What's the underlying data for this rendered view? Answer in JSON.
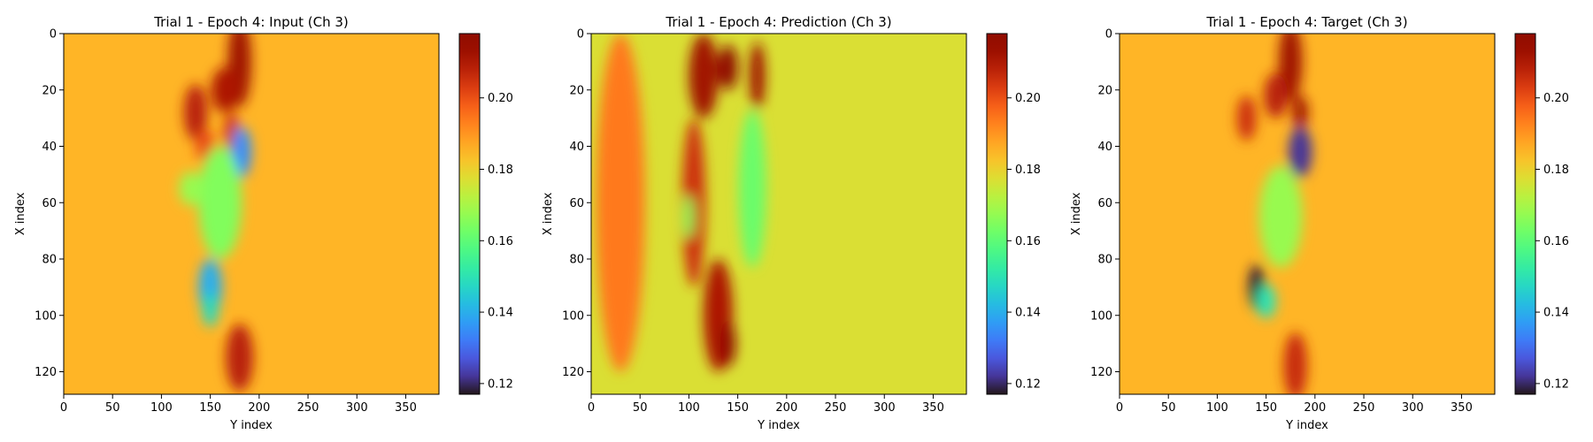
{
  "chart_data": [
    {
      "type": "heatmap",
      "title": "Trial 1 - Epoch 4: Input (Ch 3)",
      "xlabel": "Y index",
      "ylabel": "X index",
      "xlim": [
        0,
        384
      ],
      "ylim": [
        128,
        0
      ],
      "xticks": [
        0,
        50,
        100,
        150,
        200,
        250,
        300,
        350
      ],
      "yticks": [
        0,
        20,
        40,
        60,
        80,
        100,
        120
      ],
      "colorbar": {
        "range": [
          0.117,
          0.218
        ],
        "ticks": [
          "0.12",
          "0.14",
          "0.16",
          "0.18",
          "0.20"
        ],
        "colormap": "turbo"
      },
      "background_value": 0.185,
      "features": [
        {
          "x": 180,
          "y": 10,
          "rx": 12,
          "ry": 16,
          "value": 0.212
        },
        {
          "x": 165,
          "y": 20,
          "rx": 14,
          "ry": 8,
          "value": 0.21
        },
        {
          "x": 135,
          "y": 28,
          "rx": 12,
          "ry": 10,
          "value": 0.208
        },
        {
          "x": 172,
          "y": 35,
          "rx": 8,
          "ry": 7,
          "value": 0.205
        },
        {
          "x": 145,
          "y": 40,
          "rx": 10,
          "ry": 6,
          "value": 0.2
        },
        {
          "x": 182,
          "y": 42,
          "rx": 10,
          "ry": 9,
          "value": 0.135
        },
        {
          "x": 160,
          "y": 60,
          "rx": 22,
          "ry": 20,
          "value": 0.165
        },
        {
          "x": 130,
          "y": 55,
          "rx": 12,
          "ry": 6,
          "value": 0.168
        },
        {
          "x": 150,
          "y": 90,
          "rx": 12,
          "ry": 10,
          "value": 0.14
        },
        {
          "x": 150,
          "y": 98,
          "rx": 8,
          "ry": 6,
          "value": 0.148
        },
        {
          "x": 180,
          "y": 115,
          "rx": 14,
          "ry": 12,
          "value": 0.208
        }
      ]
    },
    {
      "type": "heatmap",
      "title": "Trial 1 - Epoch 4: Prediction (Ch 3)",
      "xlabel": "Y index",
      "ylabel": "X index",
      "xlim": [
        0,
        384
      ],
      "ylim": [
        128,
        0
      ],
      "xticks": [
        0,
        50,
        100,
        150,
        200,
        250,
        300,
        350
      ],
      "yticks": [
        0,
        20,
        40,
        60,
        80,
        100,
        120
      ],
      "colorbar": {
        "range": [
          0.117,
          0.218
        ],
        "ticks": [
          "0.12",
          "0.14",
          "0.16",
          "0.18",
          "0.20"
        ],
        "colormap": "turbo"
      },
      "background_value": 0.177,
      "features": [
        {
          "x": 30,
          "y": 60,
          "rx": 25,
          "ry": 60,
          "value": 0.194
        },
        {
          "x": 115,
          "y": 15,
          "rx": 15,
          "ry": 15,
          "value": 0.212
        },
        {
          "x": 140,
          "y": 12,
          "rx": 10,
          "ry": 8,
          "value": 0.218
        },
        {
          "x": 170,
          "y": 15,
          "rx": 8,
          "ry": 12,
          "value": 0.212
        },
        {
          "x": 105,
          "y": 60,
          "rx": 12,
          "ry": 30,
          "value": 0.205
        },
        {
          "x": 130,
          "y": 100,
          "rx": 15,
          "ry": 20,
          "value": 0.21
        },
        {
          "x": 140,
          "y": 110,
          "rx": 8,
          "ry": 8,
          "value": 0.216
        },
        {
          "x": 165,
          "y": 55,
          "rx": 14,
          "ry": 28,
          "value": 0.162
        },
        {
          "x": 100,
          "y": 65,
          "rx": 5,
          "ry": 8,
          "value": 0.165
        }
      ]
    },
    {
      "type": "heatmap",
      "title": "Trial 1 - Epoch 4: Target (Ch 3)",
      "xlabel": "Y index",
      "ylabel": "X index",
      "xlim": [
        0,
        384
      ],
      "ylim": [
        128,
        0
      ],
      "xticks": [
        0,
        50,
        100,
        150,
        200,
        250,
        300,
        350
      ],
      "yticks": [
        0,
        20,
        40,
        60,
        80,
        100,
        120
      ],
      "colorbar": {
        "range": [
          0.117,
          0.218
        ],
        "ticks": [
          "0.12",
          "0.14",
          "0.16",
          "0.18",
          "0.20"
        ],
        "colormap": "turbo"
      },
      "background_value": 0.185,
      "features": [
        {
          "x": 175,
          "y": 10,
          "rx": 12,
          "ry": 14,
          "value": 0.212
        },
        {
          "x": 160,
          "y": 22,
          "rx": 12,
          "ry": 8,
          "value": 0.208
        },
        {
          "x": 185,
          "y": 28,
          "rx": 8,
          "ry": 6,
          "value": 0.212
        },
        {
          "x": 130,
          "y": 30,
          "rx": 10,
          "ry": 8,
          "value": 0.205
        },
        {
          "x": 185,
          "y": 42,
          "rx": 12,
          "ry": 9,
          "value": 0.122
        },
        {
          "x": 165,
          "y": 65,
          "rx": 22,
          "ry": 18,
          "value": 0.168
        },
        {
          "x": 140,
          "y": 90,
          "rx": 8,
          "ry": 8,
          "value": 0.118
        },
        {
          "x": 150,
          "y": 95,
          "rx": 10,
          "ry": 6,
          "value": 0.15
        },
        {
          "x": 180,
          "y": 118,
          "rx": 12,
          "ry": 12,
          "value": 0.206
        }
      ]
    }
  ]
}
